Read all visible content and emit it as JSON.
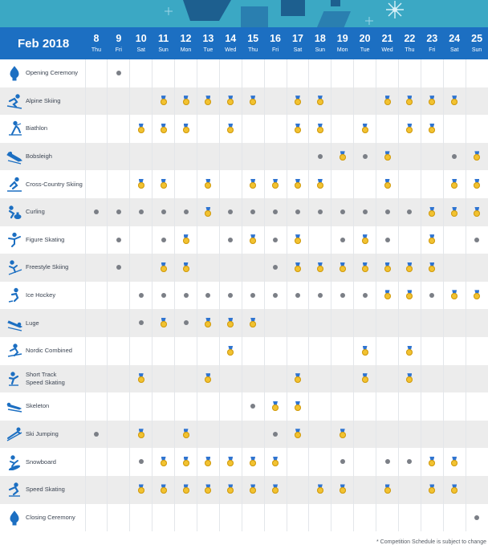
{
  "header": {
    "month_label": "Feb 2018",
    "days": [
      {
        "num": "8",
        "dow": "Thu"
      },
      {
        "num": "9",
        "dow": "Fri"
      },
      {
        "num": "10",
        "dow": "Sat"
      },
      {
        "num": "11",
        "dow": "Sun"
      },
      {
        "num": "12",
        "dow": "Mon"
      },
      {
        "num": "13",
        "dow": "Tue"
      },
      {
        "num": "14",
        "dow": "Wed"
      },
      {
        "num": "15",
        "dow": "Thu"
      },
      {
        "num": "16",
        "dow": "Fri"
      },
      {
        "num": "17",
        "dow": "Sat"
      },
      {
        "num": "18",
        "dow": "Sun"
      },
      {
        "num": "19",
        "dow": "Mon"
      },
      {
        "num": "20",
        "dow": "Tue"
      },
      {
        "num": "21",
        "dow": "Wed"
      },
      {
        "num": "22",
        "dow": "Thu"
      },
      {
        "num": "23",
        "dow": "Fri"
      },
      {
        "num": "24",
        "dow": "Sat"
      },
      {
        "num": "25",
        "dow": "Sun"
      }
    ]
  },
  "legend_codes": {
    "M": "medal event",
    "D": "competition without medal",
    ".": "no event"
  },
  "rows": [
    {
      "event": "Opening Ceremony",
      "icon": "ceremony-flame-icon",
      "cells": ".D................"
    },
    {
      "event": "Alpine Skiing",
      "icon": "alpine-skiing-icon",
      "cells": "...MMMMM.MM..MMMM."
    },
    {
      "event": "Biathlon",
      "icon": "biathlon-icon",
      "cells": "..MMM.M..MM.M.MM.."
    },
    {
      "event": "Bobsleigh",
      "icon": "bobsleigh-icon",
      "cells": "..........DMDM..DM"
    },
    {
      "event": "Cross-Country Skiing",
      "icon": "cross-country-skiing-icon",
      "cells": "..MM.M.MMMM..M..MM"
    },
    {
      "event": "Curling",
      "icon": "curling-icon",
      "cells": "DDDDDMDDDDDDDDDMMM"
    },
    {
      "event": "Figure Skating",
      "icon": "figure-skating-icon",
      "cells": ".D.DM.DMDM.DMD.M.D"
    },
    {
      "event": "Freestyle Skiing",
      "icon": "freestyle-skiing-icon",
      "cells": ".D.MM...DMMMMMMM.."
    },
    {
      "event": "Ice Hockey",
      "icon": "ice-hockey-icon",
      "cells": "..DDDDDDDDDDDMMDMM"
    },
    {
      "event": "Luge",
      "icon": "luge-icon",
      "cells": "..DMDMMM.........."
    },
    {
      "event": "Nordic Combined",
      "icon": "nordic-combined-icon",
      "cells": "......M.....M.M..."
    },
    {
      "event": "Short Track\nSpeed Skating",
      "icon": "short-track-icon",
      "cells": "..M..M...M..M.M..."
    },
    {
      "event": "Skeleton",
      "icon": "skeleton-icon",
      "cells": ".......DMM........"
    },
    {
      "event": "Ski Jumping",
      "icon": "ski-jumping-icon",
      "cells": "D.M.M...DM.M......"
    },
    {
      "event": "Snowboard",
      "icon": "snowboard-icon",
      "cells": "..DMMMMMM..D.DDMM."
    },
    {
      "event": "Speed Skating",
      "icon": "speed-skating-icon",
      "cells": "..MMMMMMM.MM.M.MM."
    },
    {
      "event": "Closing Ceremony",
      "icon": "ceremony-flame-icon",
      "cells": ".................D"
    }
  ],
  "footnote": "* Competition Schedule is subject to change",
  "colors": {
    "header_bg": "#1c6fc2",
    "banner_bg": "#3ba8c4",
    "icon": "#1c6fc2",
    "medal_gold": "#f2c230",
    "medal_ribbon": "#2f74d0",
    "dot": "#7b7f86",
    "row_alt": "#ececec"
  }
}
